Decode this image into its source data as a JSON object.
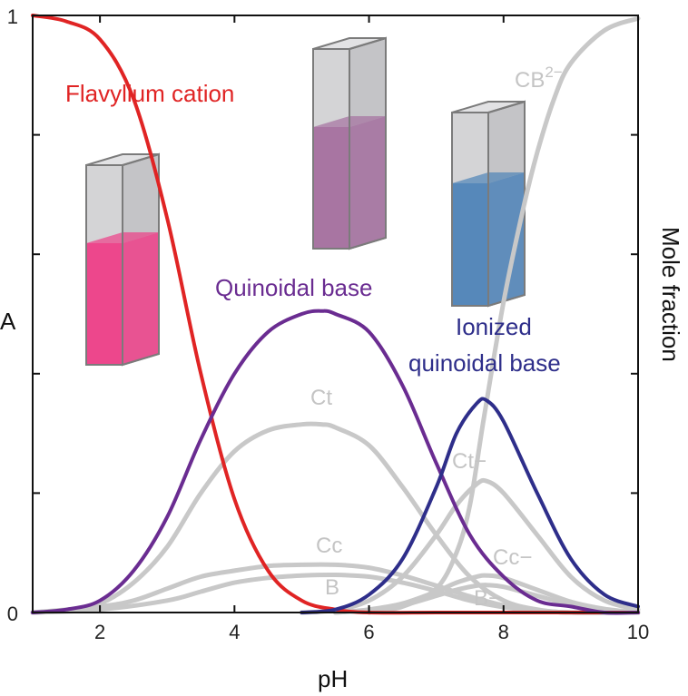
{
  "chart_data": {
    "type": "line",
    "xlabel": "pH",
    "ylabel_right": "Mole fraction",
    "ylabel_left": "A",
    "xlim": [
      1,
      10
    ],
    "ylim": [
      0,
      1
    ],
    "x_ticks": [
      2,
      4,
      6,
      8,
      10
    ],
    "y_tick_labels": [
      {
        "value": 0,
        "label": "0"
      },
      {
        "value": 1,
        "label": "1"
      }
    ],
    "y_minor_ticks": [
      0.2,
      0.4,
      0.6,
      0.8
    ],
    "series": [
      {
        "name": "Flavylium cation",
        "color": "#e02424",
        "width": 4,
        "x": [
          1,
          1.5,
          2,
          2.5,
          3,
          3.5,
          4,
          4.5,
          5,
          5.5,
          6,
          7,
          8,
          10
        ],
        "y": [
          1.0,
          0.99,
          0.96,
          0.86,
          0.66,
          0.4,
          0.19,
          0.07,
          0.02,
          0.005,
          0.0,
          0.0,
          0.0,
          0.0
        ]
      },
      {
        "name": "Quinoidal base",
        "color": "#6a2c91",
        "width": 4,
        "x": [
          1,
          1.5,
          2,
          2.5,
          3,
          3.5,
          4,
          4.5,
          5,
          5.3,
          5.5,
          6,
          6.5,
          7,
          7.5,
          8,
          8.5,
          9,
          9.5,
          10
        ],
        "y": [
          0.0,
          0.005,
          0.02,
          0.07,
          0.16,
          0.29,
          0.4,
          0.47,
          0.5,
          0.505,
          0.5,
          0.47,
          0.38,
          0.25,
          0.13,
          0.06,
          0.02,
          0.01,
          0.0,
          0.0
        ]
      },
      {
        "name": "Ionized quinoidal base",
        "color": "#2e2e8a",
        "width": 4,
        "x": [
          5,
          5.5,
          6,
          6.5,
          7,
          7.3,
          7.6,
          7.75,
          8,
          8.5,
          9,
          9.5,
          10
        ],
        "y": [
          0.0,
          0.005,
          0.03,
          0.09,
          0.21,
          0.3,
          0.35,
          0.355,
          0.32,
          0.2,
          0.09,
          0.03,
          0.01
        ]
      },
      {
        "name": "Ct",
        "color": "#c8c8c8",
        "width": 5,
        "x": [
          1,
          1.5,
          2,
          2.5,
          3,
          3.5,
          4,
          4.5,
          5,
          5.3,
          5.5,
          6,
          6.5,
          7,
          7.5,
          8,
          8.5,
          9,
          10
        ],
        "y": [
          0.0,
          0.004,
          0.015,
          0.05,
          0.11,
          0.2,
          0.27,
          0.305,
          0.315,
          0.315,
          0.31,
          0.28,
          0.21,
          0.13,
          0.06,
          0.02,
          0.005,
          0.0,
          0.0
        ]
      },
      {
        "name": "Cc",
        "color": "#c8c8c8",
        "width": 5,
        "x": [
          1,
          2,
          2.5,
          3,
          3.5,
          4,
          4.5,
          5,
          5.5,
          6,
          6.5,
          7,
          7.5,
          8,
          8.5,
          9,
          10
        ],
        "y": [
          0.0,
          0.01,
          0.02,
          0.04,
          0.06,
          0.07,
          0.078,
          0.08,
          0.08,
          0.075,
          0.062,
          0.045,
          0.027,
          0.012,
          0.004,
          0.0,
          0.0
        ]
      },
      {
        "name": "B",
        "color": "#c8c8c8",
        "width": 5,
        "x": [
          1,
          2,
          3,
          3.5,
          4,
          4.5,
          5,
          5.5,
          6,
          6.5,
          7,
          7.5,
          8,
          8.5,
          9,
          10
        ],
        "y": [
          0.0,
          0.005,
          0.02,
          0.035,
          0.05,
          0.058,
          0.062,
          0.063,
          0.06,
          0.05,
          0.036,
          0.02,
          0.009,
          0.003,
          0.0,
          0.0
        ]
      },
      {
        "name": "Ct−",
        "color": "#c8c8c8",
        "width": 5,
        "x": [
          5,
          5.5,
          6,
          6.5,
          7,
          7.3,
          7.6,
          7.75,
          8,
          8.5,
          9,
          9.5,
          10
        ],
        "y": [
          0.0,
          0.004,
          0.02,
          0.06,
          0.13,
          0.18,
          0.215,
          0.22,
          0.2,
          0.13,
          0.06,
          0.02,
          0.005
        ]
      },
      {
        "name": "Cc−",
        "color": "#c8c8c8",
        "width": 5,
        "x": [
          5.5,
          6,
          6.5,
          7,
          7.3,
          7.6,
          7.75,
          8,
          8.5,
          9,
          9.5,
          10
        ],
        "y": [
          0.0,
          0.005,
          0.015,
          0.035,
          0.05,
          0.06,
          0.062,
          0.058,
          0.038,
          0.018,
          0.006,
          0.0
        ]
      },
      {
        "name": "B−",
        "color": "#c8c8c8",
        "width": 5,
        "x": [
          5.5,
          6,
          6.5,
          7,
          7.3,
          7.6,
          7.75,
          8,
          8.5,
          9,
          9.5,
          10
        ],
        "y": [
          0.0,
          0.004,
          0.012,
          0.028,
          0.038,
          0.045,
          0.046,
          0.043,
          0.028,
          0.013,
          0.004,
          0.0
        ]
      },
      {
        "name": "CB2−",
        "color": "#c8c8c8",
        "width": 5,
        "x": [
          6,
          6.5,
          7,
          7.3,
          7.5,
          7.7,
          8,
          8.3,
          8.5,
          8.75,
          9,
          9.5,
          10
        ],
        "y": [
          0.0,
          0.01,
          0.04,
          0.1,
          0.18,
          0.32,
          0.52,
          0.68,
          0.77,
          0.86,
          0.92,
          0.975,
          0.995
        ]
      }
    ],
    "labels": {
      "flavylium": "Flavylium cation",
      "quinoidal": "Quinoidal base",
      "ionized_1": "Ionized",
      "ionized_2": "quinoidal base",
      "ct": "Ct",
      "cc": "Cc",
      "b": "B",
      "ct_minus": "Ct−",
      "cc_minus": "Cc−",
      "b_minus": "B−",
      "cb2_base": "CB",
      "cb2_sup": "2−"
    },
    "cuvettes": [
      {
        "name": "pink-cuvette",
        "liquid_color": "#ee3f88"
      },
      {
        "name": "purple-cuvette",
        "liquid_color": "#a5709f"
      },
      {
        "name": "blue-cuvette",
        "liquid_color": "#4f84b8"
      }
    ]
  }
}
